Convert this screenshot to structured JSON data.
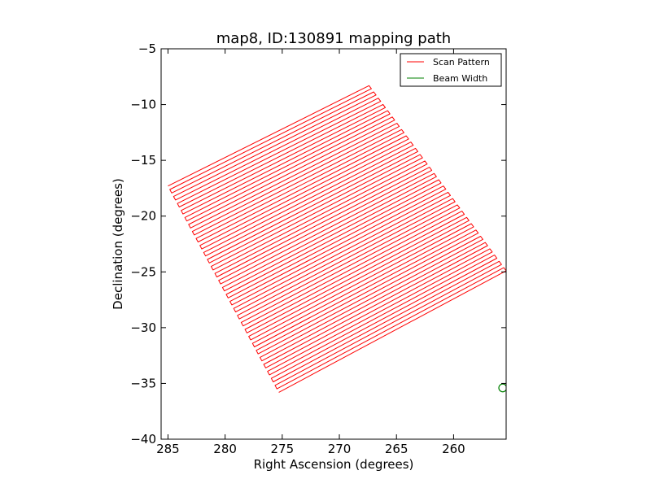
{
  "chart_data": {
    "type": "line",
    "title": "map8, ID:130891 mapping path",
    "xlabel": "Right Ascension (degrees)",
    "ylabel": "Declination (degrees)",
    "x_inverted": true,
    "xlim": [
      285.6,
      255.4
    ],
    "ylim": [
      -40,
      -5
    ],
    "xticks": [
      285,
      280,
      275,
      270,
      265,
      260
    ],
    "xtick_labels": [
      "285",
      "280",
      "275",
      "270",
      "265",
      "260"
    ],
    "yticks": [
      -5,
      -10,
      -15,
      -20,
      -25,
      -30,
      -35,
      -40
    ],
    "ytick_labels": [
      "−5",
      "−10",
      "−15",
      "−20",
      "−25",
      "−30",
      "−35",
      "−40"
    ],
    "grid": false,
    "legend_position": "top-right",
    "series": [
      {
        "name": "Scan Pattern",
        "color": "#ff0000",
        "pattern": "boustrophedon raster",
        "scan_count": 60,
        "corners": {
          "top_left": [
            285.0,
            -17.3
          ],
          "top_right": [
            267.4,
            -8.3
          ],
          "bottom_left": [
            275.3,
            -35.8
          ],
          "bottom_right": [
            255.4,
            -24.9
          ]
        }
      },
      {
        "name": "Beam Width",
        "color": "#008000",
        "shape": "circle",
        "center": [
          255.7,
          -35.4
        ],
        "radius_deg": 0.35
      }
    ]
  }
}
